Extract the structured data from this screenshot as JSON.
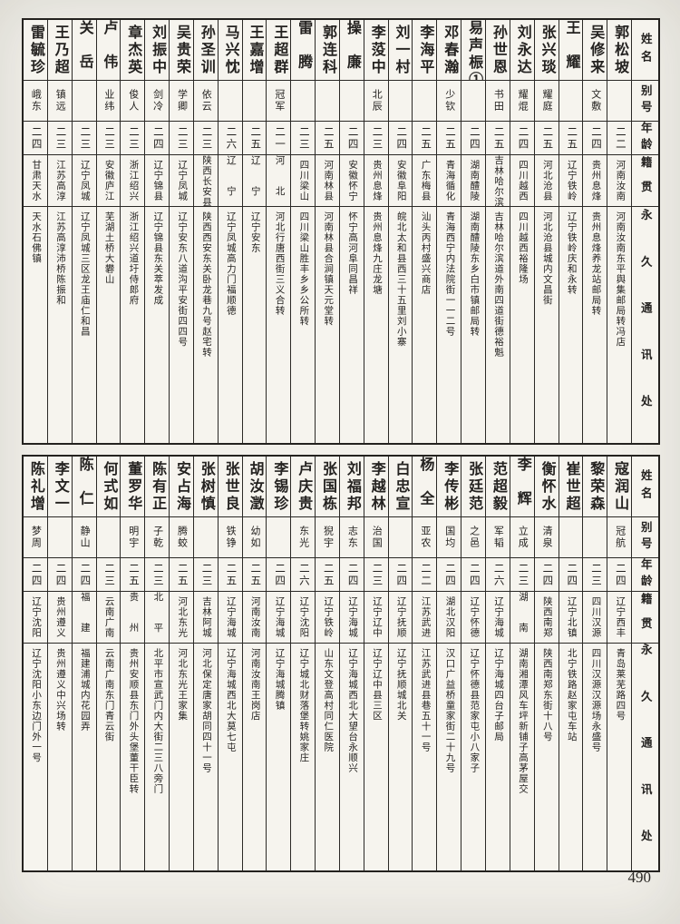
{
  "page_number": "490",
  "colors": {
    "paper": "#f2f0ea",
    "ink": "#242220",
    "line": "#2b2926"
  },
  "table": {
    "headers": {
      "name": "姓名",
      "alias": "别号",
      "age": "年龄",
      "native": "籍贯",
      "address": "永久通讯处"
    },
    "blocks": [
      {
        "entries": [
          {
            "name": "郭松坡",
            "alias": "",
            "age": "二二",
            "native": "河南汝南",
            "address": "河南汝南东平舆集邮局转冯店"
          },
          {
            "name": "吴修来",
            "alias": "文敷",
            "age": "二四",
            "native": "贵州息烽",
            "address": "贵州息烽养龙站邮局转"
          },
          {
            "name": "王耀",
            "alias": "",
            "age": "二五",
            "native": "辽宁铁岭",
            "address": "辽宁铁岭庆和永转"
          },
          {
            "name": "张兴琰",
            "alias": "耀庭",
            "age": "二五",
            "native": "河北沧县",
            "address": "河北沧县城内文昌街"
          },
          {
            "name": "刘永达",
            "alias": "耀焜",
            "age": "二四",
            "native": "四川越西",
            "address": "四川越西裕隆场"
          },
          {
            "name": "孙世恩",
            "alias": "书田",
            "age": "二五",
            "native": "吉林哈尔滨",
            "address": "吉林哈尔滨道外南四道街德裕魁"
          },
          {
            "name": "易声桭①",
            "alias": "",
            "age": "二四",
            "native": "湖南醴陵",
            "address": "湖南醴陵东乡白市镇邮局转"
          },
          {
            "name": "邓春瀚",
            "alias": "少钦",
            "age": "二五",
            "native": "青海循化",
            "address": "青海西宁内法院街一一二号"
          },
          {
            "name": "李海平",
            "alias": "",
            "age": "二五",
            "native": "广东梅县",
            "address": "汕头丙村盛兴商店"
          },
          {
            "name": "刘一村",
            "alias": "",
            "age": "二四",
            "native": "安徽阜阳",
            "address": "皖北太和县西三十五里刘小寨"
          },
          {
            "name": "李莈中",
            "alias": "北辰",
            "age": "二三",
            "native": "贵州息烽",
            "address": "贵州息烽九庄龙塘"
          },
          {
            "name": "操廉",
            "alias": "",
            "age": "二四",
            "native": "安徽怀宁",
            "address": "怀宁高河阜同昌祥"
          },
          {
            "name": "郭连科",
            "alias": "",
            "age": "二五",
            "native": "河南林县",
            "address": "河南林县合涧镇天元堂转"
          },
          {
            "name": "雷腾",
            "alias": "",
            "age": "二三",
            "native": "四川梁山",
            "address": "四川梁山胜丰乡乡公所转"
          },
          {
            "name": "王超群",
            "alias": "冠军",
            "age": "二一",
            "native": "河北",
            "address": "河北行唐西街三义合转"
          },
          {
            "name": "王嘉增",
            "alias": "",
            "age": "二五",
            "native": "辽宁",
            "address": "辽宁安东"
          },
          {
            "name": "马兴忱",
            "alias": "",
            "age": "二六",
            "native": "辽宁",
            "address": "辽宁凤城高力门福顺德"
          },
          {
            "name": "孙圣训",
            "alias": "依云",
            "age": "二三",
            "native": "陕西长安县",
            "address": "陕西西安东关卧龙巷九号赵宅转"
          },
          {
            "name": "吴贵荣",
            "alias": "学卿",
            "age": "二三",
            "native": "辽宁凤城",
            "address": "辽宁安东八道沟平安街四四号"
          },
          {
            "name": "刘振中",
            "alias": "剑冷",
            "age": "二四",
            "native": "辽宁锦县",
            "address": "辽宁锦县东关萃发成"
          },
          {
            "name": "章杰英",
            "alias": "俊人",
            "age": "二三",
            "native": "浙江绍兴",
            "address": "浙江绍兴道圩侍郎府"
          },
          {
            "name": "卢伟",
            "alias": "业纬",
            "age": "二三",
            "native": "安徽庐江",
            "address": "芜湖土桥大礬山"
          },
          {
            "name": "关岳",
            "alias": "",
            "age": "二三",
            "native": "辽宁凤城",
            "address": "辽宁凤城三区龙王庙仁和昌"
          },
          {
            "name": "王乃超",
            "alias": "镇远",
            "age": "二三",
            "native": "江苏高淳",
            "address": "江苏高淳沛桥陈振和"
          },
          {
            "name": "雷毓珍",
            "alias": "峨东",
            "age": "二四",
            "native": "甘肃天水",
            "address": "天水石佛镇"
          }
        ]
      },
      {
        "entries": [
          {
            "name": "寇润山",
            "alias": "冠航",
            "age": "二四",
            "native": "辽宁西丰",
            "address": "青岛莱芜路四号"
          },
          {
            "name": "黎荣森",
            "alias": "",
            "age": "二三",
            "native": "四川汉源",
            "address": "四川汉源汉源场永盛号"
          },
          {
            "name": "崔世超",
            "alias": "",
            "age": "二四",
            "native": "辽宁北镇",
            "address": "北宁铁路赵家屯车站"
          },
          {
            "name": "衡怀水",
            "alias": "清泉",
            "age": "二四",
            "native": "陕西南郑",
            "address": "陕西南郑东街十八号"
          },
          {
            "name": "李辉",
            "alias": "立成",
            "age": "二三",
            "native": "湖南",
            "address": "湖南湘潭风车坪新铺子高茅屋交"
          },
          {
            "name": "范超毅",
            "alias": "军韬",
            "age": "二六",
            "native": "辽宁海城",
            "address": "辽宁海城四台子邮局"
          },
          {
            "name": "张廷范",
            "alias": "之邑",
            "age": "二四",
            "native": "辽宁怀德",
            "address": "辽宁怀德县范家屯小八家子"
          },
          {
            "name": "李传彬",
            "alias": "国均",
            "age": "二四",
            "native": "湖北汉阳",
            "address": "汉口广益桥童家街二十九号"
          },
          {
            "name": "杨全",
            "alias": "亚农",
            "age": "二二",
            "native": "江苏武进",
            "address": "江苏武进县巷五十一号"
          },
          {
            "name": "白忠宣",
            "alias": "",
            "age": "二四",
            "native": "辽宁抚顺",
            "address": "辽宁抚顺城北关"
          },
          {
            "name": "李越林",
            "alias": "治国",
            "age": "二三",
            "native": "辽宁辽中",
            "address": "辽宁辽中县三区"
          },
          {
            "name": "刘福邦",
            "alias": "志东",
            "age": "二四",
            "native": "辽宁海城",
            "address": "辽宁海城西北大望台永顺兴"
          },
          {
            "name": "张国栋",
            "alias": "猊宇",
            "age": "二五",
            "native": "辽宁铁岭",
            "address": "山东文登高村同仁医院"
          },
          {
            "name": "卢庆贵",
            "alias": "东光",
            "age": "二六",
            "native": "辽宁沈阳",
            "address": "辽宁城北财落堡转姚家庄"
          },
          {
            "name": "李锡珍",
            "alias": "",
            "age": "二四",
            "native": "辽宁海城",
            "address": "辽宁海城腾镇"
          },
          {
            "name": "胡汝澂",
            "alias": "幼如",
            "age": "二五",
            "native": "河南汝南",
            "address": "河南汝南王岗店"
          },
          {
            "name": "张世良",
            "alias": "铁铮",
            "age": "二五",
            "native": "辽宁海城",
            "address": "辽宁海城西北大莫七屯"
          },
          {
            "name": "张树慎",
            "alias": "",
            "age": "二三",
            "native": "吉林阿城",
            "address": "河北保定唐家胡同四十一号"
          },
          {
            "name": "安占海",
            "alias": "腾蛟",
            "age": "二五",
            "native": "河北东光",
            "address": "河北东光王家集"
          },
          {
            "name": "陈有正",
            "alias": "子乾",
            "age": "二三",
            "native": "北平",
            "address": "北平市宣武门内大街二三八旁门"
          },
          {
            "name": "董罗华",
            "alias": "明宇",
            "age": "二五",
            "native": "贵州",
            "address": "贵州安顺县东门外头堡董干臣转"
          },
          {
            "name": "何式如",
            "alias": "",
            "age": "二三",
            "native": "云南广南",
            "address": "云南广南东门青云街"
          },
          {
            "name": "陈仁",
            "alias": "静山",
            "age": "二四",
            "native": "福建",
            "address": "福建浦城内花园弄"
          },
          {
            "name": "李文一",
            "alias": "",
            "age": "二四",
            "native": "贵州遵义",
            "address": "贵州遵义中兴场转"
          },
          {
            "name": "陈礼增",
            "alias": "梦周",
            "age": "二四",
            "native": "辽宁沈阳",
            "address": "辽宁沈阳小东边门外一号"
          }
        ]
      }
    ]
  }
}
